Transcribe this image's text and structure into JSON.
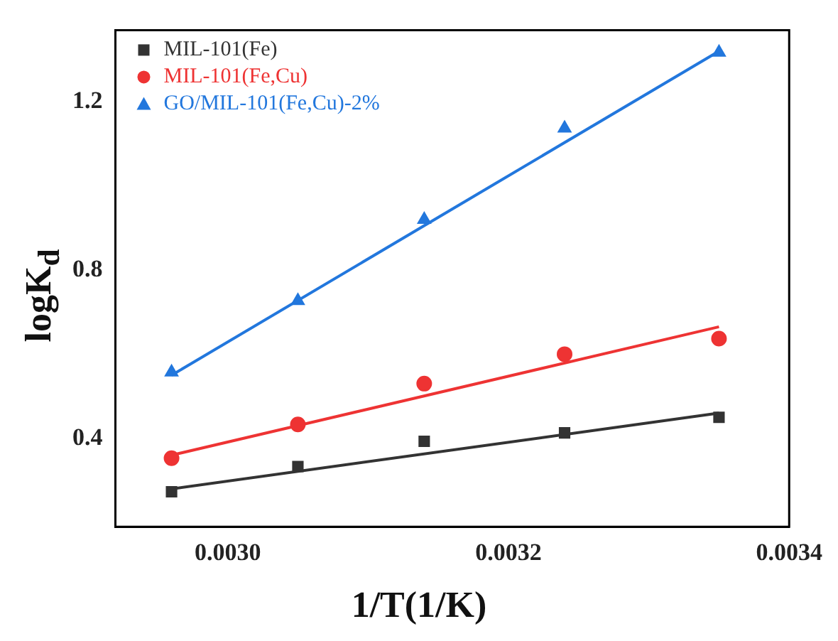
{
  "chart_data": {
    "type": "scatter",
    "xlabel": "1/T(1/K)",
    "ylabel": "logK$_{d}$",
    "x": [
      0.00296,
      0.00305,
      0.00314,
      0.00324,
      0.00335
    ],
    "series": [
      {
        "name": "MIL-101(Fe)",
        "color": "#333333",
        "marker": "square",
        "values": [
          0.273,
          0.333,
          0.393,
          0.413,
          0.45
        ]
      },
      {
        "name": "MIL-101(Fe,Cu)",
        "color": "#ee3333",
        "marker": "circle",
        "values": [
          0.353,
          0.433,
          0.53,
          0.6,
          0.637
        ]
      },
      {
        "name": "GO/MIL-101(Fe,Cu)-2%",
        "color": "#2277dd",
        "marker": "triangle",
        "values": [
          0.557,
          0.727,
          0.92,
          1.137,
          1.317
        ]
      },
      {
        "type": "line",
        "color": "#333333",
        "values": [
          0.28,
          null,
          null,
          null,
          0.46
        ]
      },
      {
        "type": "line",
        "color": "#ee3333",
        "values": [
          0.36,
          null,
          null,
          null,
          0.665
        ]
      },
      {
        "type": "line",
        "color": "#2277dd",
        "values": [
          0.55,
          null,
          null,
          null,
          1.32
        ]
      }
    ],
    "xlim": [
      0.00292,
      0.0034
    ],
    "ylim": [
      0.19,
      1.37
    ],
    "xticks": [
      {
        "value": 0.003,
        "label": "0.0030"
      },
      {
        "value": 0.0032,
        "label": "0.0032"
      },
      {
        "value": 0.0034,
        "label": "0.0034"
      }
    ],
    "yticks": [
      0.4,
      0.8,
      1.2
    ],
    "grid": false,
    "legend": "top left"
  }
}
